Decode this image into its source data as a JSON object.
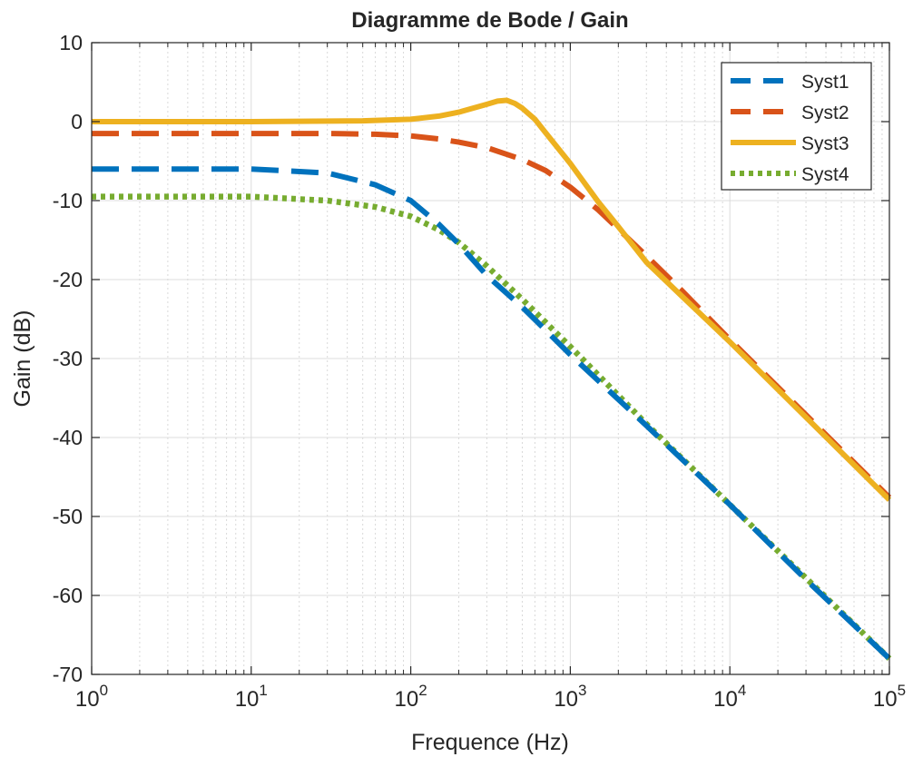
{
  "chart_data": {
    "type": "line",
    "title": "Diagramme de Bode / Gain",
    "xlabel": "Frequence (Hz)",
    "ylabel": "Gain (dB)",
    "x_scale": "log",
    "xlim": [
      1,
      100000
    ],
    "ylim": [
      -70,
      10
    ],
    "grid": true,
    "minor_grid": true,
    "legend_position": "top-right",
    "x_ticks": [
      {
        "base": "10",
        "exp": "0"
      },
      {
        "base": "10",
        "exp": "1"
      },
      {
        "base": "10",
        "exp": "2"
      },
      {
        "base": "10",
        "exp": "3"
      },
      {
        "base": "10",
        "exp": "4"
      },
      {
        "base": "10",
        "exp": "5"
      }
    ],
    "y_ticks": [
      "10",
      "0",
      "-10",
      "-20",
      "-30",
      "-40",
      "-50",
      "-60",
      "-70"
    ],
    "series": [
      {
        "name": "Syst1",
        "color": "#0072BD",
        "style": "dashed",
        "x": [
          1,
          3,
          10,
          30,
          60,
          100,
          150,
          200,
          300,
          500,
          1000,
          3000,
          10000,
          30000,
          100000
        ],
        "y": [
          -6.0,
          -6.0,
          -6.0,
          -6.5,
          -8.0,
          -10.0,
          -13.0,
          -15.5,
          -19.5,
          -23.5,
          -29.5,
          -38.5,
          -48.5,
          -58.0,
          -68.0
        ]
      },
      {
        "name": "Syst2",
        "color": "#D95319",
        "style": "dashed",
        "x": [
          1,
          10,
          30,
          60,
          100,
          150,
          200,
          300,
          500,
          700,
          1000,
          1500,
          2000,
          3000,
          5000,
          10000,
          100000
        ],
        "y": [
          -1.5,
          -1.5,
          -1.5,
          -1.6,
          -1.8,
          -2.2,
          -2.6,
          -3.3,
          -4.8,
          -6.2,
          -8.3,
          -11.2,
          -13.6,
          -17.0,
          -21.4,
          -27.6,
          -47.6
        ]
      },
      {
        "name": "Syst3",
        "color": "#EDB120",
        "style": "solid",
        "x": [
          1,
          10,
          50,
          100,
          150,
          200,
          300,
          350,
          400,
          450,
          500,
          600,
          700,
          1000,
          1500,
          2000,
          3000,
          5000,
          10000,
          100000
        ],
        "y": [
          0,
          0,
          0.1,
          0.3,
          0.7,
          1.2,
          2.2,
          2.6,
          2.7,
          2.3,
          1.7,
          0.3,
          -1.4,
          -5.3,
          -10.2,
          -13.3,
          -17.8,
          -22.1,
          -27.9,
          -47.9
        ]
      },
      {
        "name": "Syst4",
        "color": "#77AC30",
        "style": "dotted",
        "x": [
          1,
          3,
          10,
          30,
          60,
          100,
          150,
          200,
          300,
          500,
          1000,
          3000,
          10000,
          30000,
          100000
        ],
        "y": [
          -9.5,
          -9.5,
          -9.5,
          -10.0,
          -10.8,
          -12.0,
          -13.7,
          -15.3,
          -18.3,
          -22.5,
          -28.5,
          -38.3,
          -48.5,
          -57.8,
          -68.0
        ]
      }
    ]
  }
}
